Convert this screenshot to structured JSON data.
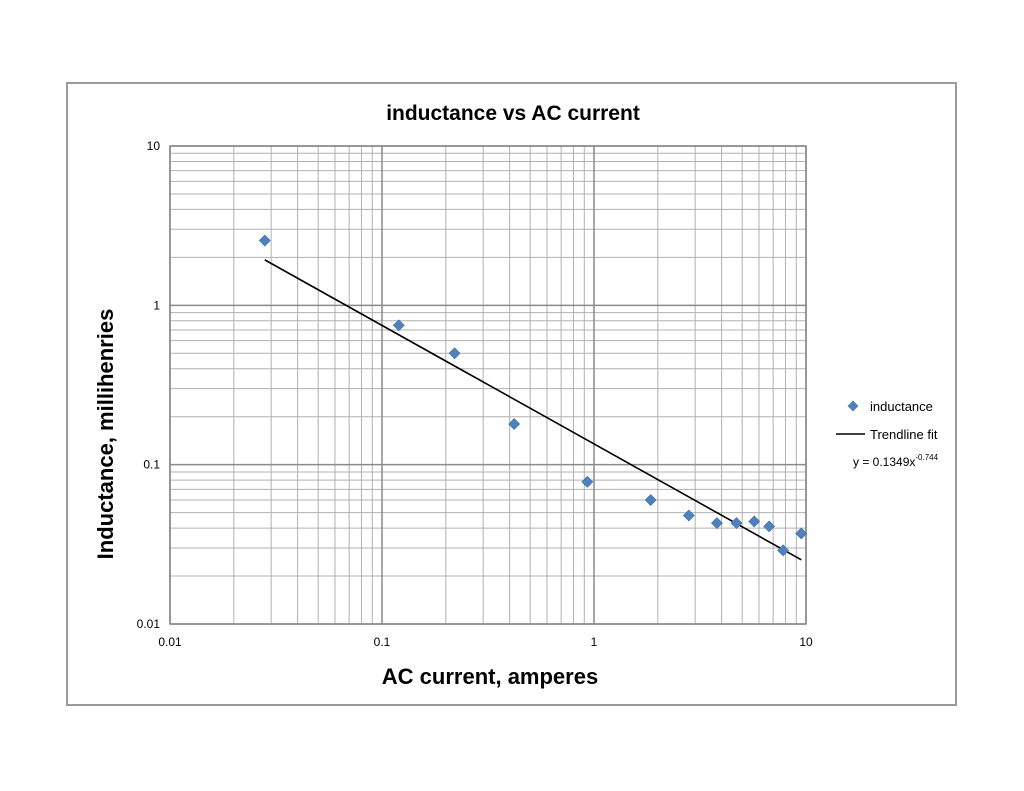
{
  "chart_data": {
    "type": "scatter",
    "title": "inductance vs AC current",
    "xlabel": "AC current, amperes",
    "ylabel": "Inductance, millihenries",
    "xscale": "log",
    "yscale": "log",
    "xlim": [
      0.01,
      10
    ],
    "ylim": [
      0.01,
      10
    ],
    "xticks": [
      "0.01",
      "0.1",
      "1",
      "10"
    ],
    "yticks": [
      "0.01",
      "0.1",
      "1",
      "10"
    ],
    "grid": true,
    "legend_position": "right",
    "series": [
      {
        "name": "inductance",
        "marker": "diamond",
        "color": "#4f81bd",
        "x": [
          0.028,
          0.12,
          0.22,
          0.42,
          0.93,
          1.85,
          2.8,
          3.8,
          4.7,
          5.7,
          6.7,
          7.8,
          9.5
        ],
        "y": [
          2.55,
          0.75,
          0.5,
          0.18,
          0.078,
          0.06,
          0.048,
          0.043,
          0.043,
          0.044,
          0.041,
          0.029,
          0.037
        ]
      }
    ],
    "trendline": {
      "name": "Trendline fit",
      "color": "#000000",
      "equation_base": "y = 0.1349x",
      "equation_exp": "-0.744",
      "coefficient": 0.1349,
      "exponent": -0.744,
      "x_range": [
        0.028,
        9.5
      ]
    }
  }
}
